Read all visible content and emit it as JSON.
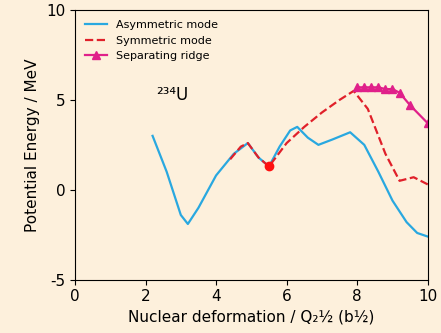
{
  "chart_data": {
    "type": "line",
    "x_label": "Nuclear deformation / Q₂½ (b½)",
    "y_label": "Potential Energy / MeV",
    "annotation": "²³⁴U",
    "xlim": [
      0,
      10
    ],
    "xticks": [
      0,
      2,
      4,
      6,
      8,
      10
    ],
    "ylim": [
      -5,
      10
    ],
    "yticks": [
      -5,
      0,
      5,
      10
    ],
    "grid": false,
    "legend": "upper left",
    "series": [
      {
        "name": "Asymmetric mode",
        "color": "#29a8e0",
        "line_style": "solid",
        "marker": "none",
        "x": [
          2.2,
          2.6,
          3.0,
          3.2,
          3.5,
          4.0,
          4.5,
          4.9,
          5.2,
          5.5,
          5.8,
          6.1,
          6.3,
          6.6,
          6.9,
          7.3,
          7.8,
          8.2,
          8.6,
          9.0,
          9.4,
          9.7,
          10.0
        ],
        "values": [
          3.0,
          1.0,
          -1.4,
          -1.9,
          -1.0,
          0.8,
          2.0,
          2.6,
          1.8,
          1.3,
          2.4,
          3.3,
          3.5,
          2.9,
          2.5,
          2.8,
          3.2,
          2.5,
          1.0,
          -0.6,
          -1.8,
          -2.4,
          -2.6
        ]
      },
      {
        "name": "Symmetric mode",
        "color": "#e0202a",
        "line_style": "dashed",
        "marker": "none",
        "x": [
          4.4,
          4.7,
          4.9,
          5.2,
          5.5,
          6.0,
          6.5,
          7.0,
          7.5,
          7.9,
          8.3,
          8.8,
          9.2,
          9.6,
          10.0
        ],
        "values": [
          1.7,
          2.4,
          2.6,
          1.8,
          1.3,
          2.6,
          3.5,
          4.3,
          5.0,
          5.5,
          4.5,
          2.0,
          0.5,
          0.7,
          0.3
        ]
      },
      {
        "name": "Separating ridge",
        "color": "#e0208a",
        "line_style": "solid",
        "marker": "triangle",
        "x": [
          8.0,
          8.2,
          8.4,
          8.6,
          8.8,
          9.0,
          9.2,
          9.5,
          10.0
        ],
        "values": [
          5.7,
          5.7,
          5.7,
          5.7,
          5.6,
          5.6,
          5.4,
          4.7,
          3.7
        ]
      }
    ],
    "points": [
      {
        "x": 5.5,
        "y": 1.3,
        "color": "#ff1010"
      }
    ]
  }
}
